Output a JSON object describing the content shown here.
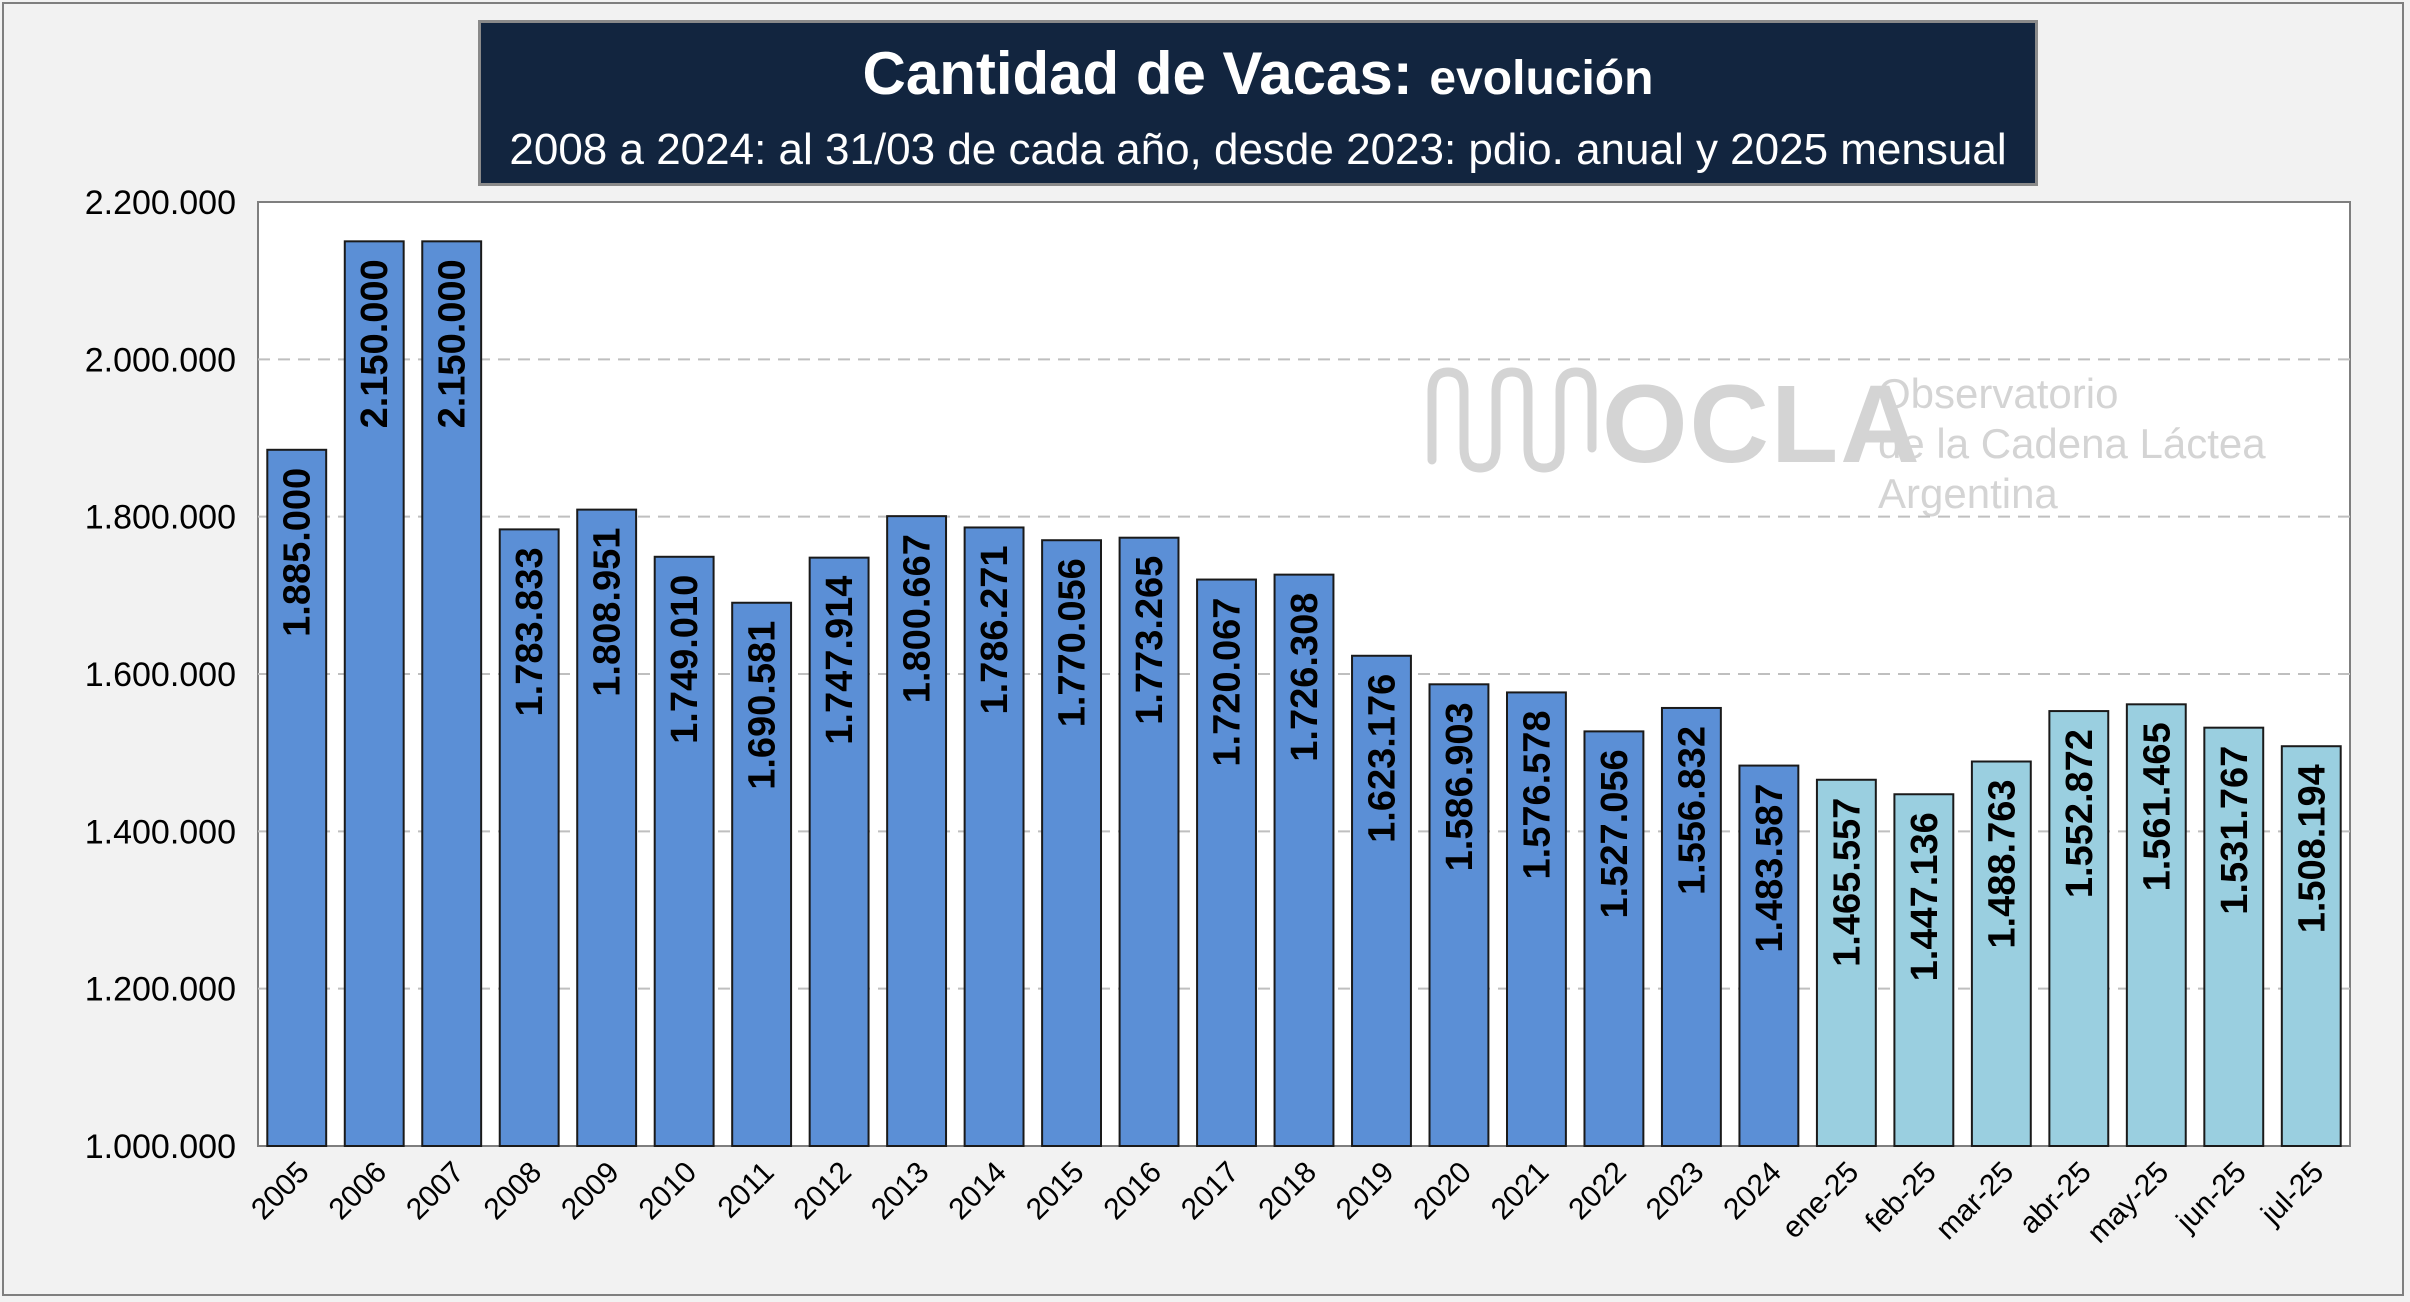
{
  "title": {
    "main": "Cantidad de Vacas:",
    "suffix": "evolución",
    "subtitle": "2008 a 2024: al 31/03 de cada año, desde 2023: pdio. anual y 2025 mensual"
  },
  "watermark": {
    "logo": "OCLA",
    "line1": "Observatorio",
    "line2": "de la Cadena Láctea",
    "line3": "Argentina"
  },
  "colors": {
    "annual": "#5b8fd6",
    "monthly": "#9acfe0",
    "bar_border": "#1a1a1a",
    "grid": "#bfbfbf",
    "title_bg": "#12253f"
  },
  "chart_data": {
    "type": "bar",
    "title": "Cantidad de Vacas: evolución",
    "subtitle": "2008 a 2024: al 31/03 de cada año, desde 2023: pdio. anual y 2025 mensual",
    "xlabel": "",
    "ylabel": "",
    "ylim": [
      1000000,
      2200000
    ],
    "ytick_step": 200000,
    "yticks": [
      "1.000.000",
      "1.200.000",
      "1.400.000",
      "1.600.000",
      "1.800.000",
      "2.000.000",
      "2.200.000"
    ],
    "grid": true,
    "categories": [
      "2005",
      "2006",
      "2007",
      "2008",
      "2009",
      "2010",
      "2011",
      "2012",
      "2013",
      "2014",
      "2015",
      "2016",
      "2017",
      "2018",
      "2019",
      "2020",
      "2021",
      "2022",
      "2023",
      "2024",
      "ene-25",
      "feb-25",
      "mar-25",
      "abr-25",
      "may-25",
      "jun-25",
      "jul-25"
    ],
    "values": [
      1885000,
      2150000,
      2150000,
      1783833,
      1808951,
      1749010,
      1690581,
      1747914,
      1800667,
      1786271,
      1770056,
      1773265,
      1720067,
      1726308,
      1623176,
      1586903,
      1576578,
      1527056,
      1556832,
      1483587,
      1465557,
      1447136,
      1488763,
      1552872,
      1561465,
      1531767,
      1508194
    ],
    "labels": [
      "1.885.000",
      "2.150.000",
      "2.150.000",
      "1.783.833",
      "1.808.951",
      "1.749.010",
      "1.690.581",
      "1.747.914",
      "1.800.667",
      "1.786.271",
      "1.770.056",
      "1.773.265",
      "1.720.067",
      "1.726.308",
      "1.623.176",
      "1.586.903",
      "1.576.578",
      "1.527.056",
      "1.556.832",
      "1.483.587",
      "1.465.557",
      "1.447.136",
      "1.488.763",
      "1.552.872",
      "1.561.465",
      "1.531.767",
      "1.508.194"
    ],
    "bar_group": [
      "annual",
      "annual",
      "annual",
      "annual",
      "annual",
      "annual",
      "annual",
      "annual",
      "annual",
      "annual",
      "annual",
      "annual",
      "annual",
      "annual",
      "annual",
      "annual",
      "annual",
      "annual",
      "annual",
      "annual",
      "monthly",
      "monthly",
      "monthly",
      "monthly",
      "monthly",
      "monthly",
      "monthly"
    ]
  }
}
